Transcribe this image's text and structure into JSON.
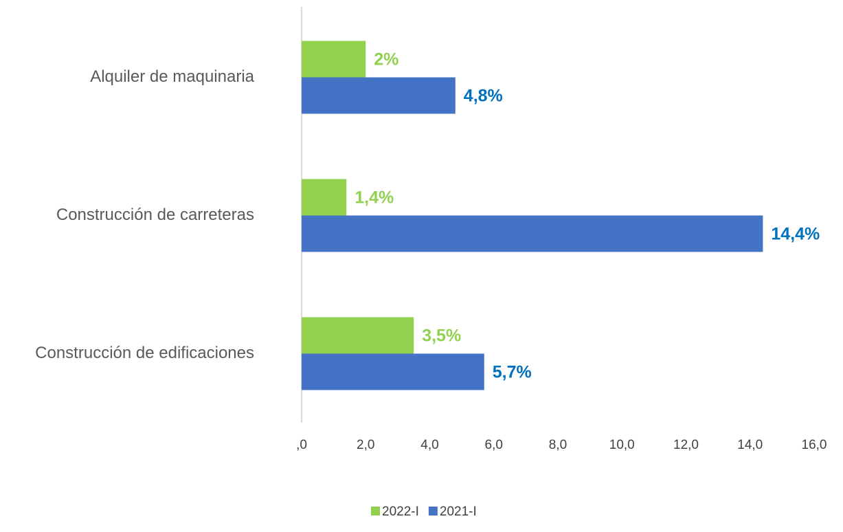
{
  "chart_data": {
    "type": "barh",
    "categories": [
      "Alquiler de maquinaria",
      "Construcción de carreteras",
      "Construcción de edificaciones"
    ],
    "series": [
      {
        "name": "2022-I",
        "color": "#92d050",
        "label_color": "#92d050",
        "values": [
          2,
          1.4,
          3.5
        ],
        "value_labels": [
          "2%",
          "1,4%",
          "3,5%"
        ]
      },
      {
        "name": "2021-I",
        "color": "#4472c4",
        "label_color": "#0070c0",
        "values": [
          4.8,
          14.4,
          5.7
        ],
        "value_labels": [
          "4,8%",
          "14,4%",
          "5,7%"
        ]
      }
    ],
    "xlim": [
      0,
      16
    ],
    "xticks": [
      {
        "value": 0,
        "label": ",0"
      },
      {
        "value": 2,
        "label": "2,0"
      },
      {
        "value": 4,
        "label": "4,0"
      },
      {
        "value": 6,
        "label": "6,0"
      },
      {
        "value": 8,
        "label": "8,0"
      },
      {
        "value": 10,
        "label": "10,0"
      },
      {
        "value": 12,
        "label": "12,0"
      },
      {
        "value": 14,
        "label": "14,0"
      },
      {
        "value": 16,
        "label": "16,0"
      }
    ],
    "grid": false,
    "legend": "bottom"
  }
}
